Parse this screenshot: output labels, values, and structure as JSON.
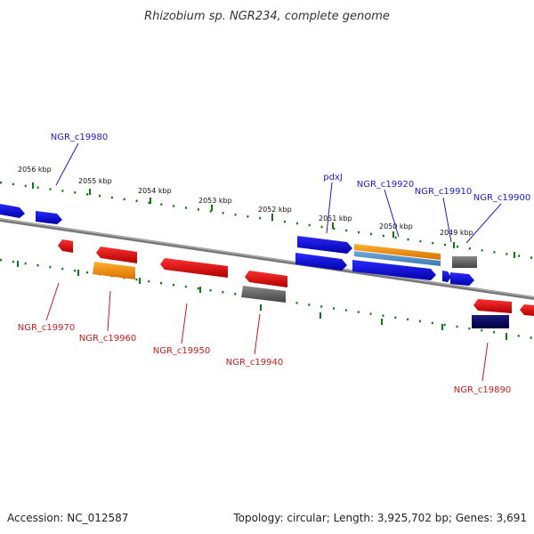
{
  "title": "Rhizobium sp. NGR234, complete genome",
  "footer": {
    "accession": "Accession: NC_012587",
    "stats": "Topology: circular; Length: 3,925,702 bp; Genes: 3,691"
  },
  "colors": {
    "forward_label": "#1a1acc",
    "reverse_label": "#cc1a1a",
    "cds": "#e00000",
    "cds_forward": "#0000dd",
    "rna": "#ff8c00",
    "pseudo": "#666666",
    "other": "#000066",
    "scale_ticks": "#117711",
    "backbone": "#7a7a7a"
  },
  "kbp_markers": [
    {
      "label": "2056 kbp"
    },
    {
      "label": "2055 kbp"
    },
    {
      "label": "2054 kbp"
    },
    {
      "label": "2053 kbp"
    },
    {
      "label": "2052 kbp"
    },
    {
      "label": "2051 kbp"
    },
    {
      "label": "2050 kbp"
    },
    {
      "label": "2049 kbp"
    }
  ],
  "forward_labels": [
    {
      "label": "NGR_c19980"
    },
    {
      "label": "pdxJ"
    },
    {
      "label": "NGR_c19920"
    },
    {
      "label": "NGR_c19910"
    },
    {
      "label": "NGR_c19900"
    }
  ],
  "reverse_labels": [
    {
      "label": "NGR_c19970"
    },
    {
      "label": "NGR_c19960"
    },
    {
      "label": "NGR_c19950"
    },
    {
      "label": "NGR_c19940"
    },
    {
      "label": "NGR_c19890"
    }
  ]
}
